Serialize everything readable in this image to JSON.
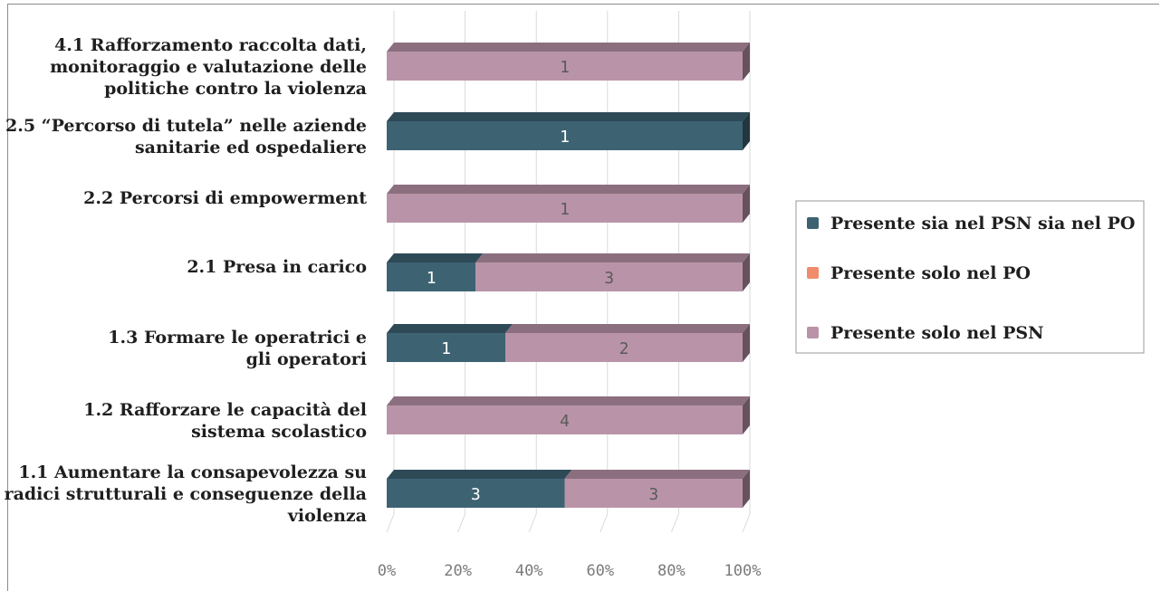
{
  "chart_data": {
    "type": "bar",
    "orientation": "horizontal",
    "stacking": "percent",
    "categories": [
      [
        "4.1 Rafforzamento raccolta dati,",
        "monitoraggio e valutazione delle",
        "politiche contro la violenza"
      ],
      [
        "2.5 “Percorso di tutela” nelle aziende",
        "sanitarie ed ospedaliere"
      ],
      [
        "2.2 Percorsi di empowerment"
      ],
      [
        "2.1 Presa in carico"
      ],
      [
        "1.3 Formare le operatrici e",
        "gli operatori"
      ],
      [
        "1.2 Rafforzare le capacità del",
        "sistema scolastico"
      ],
      [
        "1.1 Aumentare la consapevolezza su",
        "radici strutturali e conseguenze della",
        "violenza"
      ]
    ],
    "series": [
      {
        "name": "Presente sia nel PSN sia nel PO",
        "color": "#3d6373",
        "label_color": "#ffffff",
        "values": [
          0,
          1,
          0,
          1,
          1,
          0,
          3
        ]
      },
      {
        "name": "Presente solo nel PO",
        "color": "#f08c6c",
        "label_color": "#ffffff",
        "values": [
          0,
          0,
          0,
          0,
          0,
          0,
          0
        ]
      },
      {
        "name": "Presente solo nel PSN",
        "color": "#b994a8",
        "label_color": "#5a5a5a",
        "values": [
          1,
          0,
          1,
          3,
          2,
          4,
          3
        ]
      }
    ],
    "x_ticks": [
      "0%",
      "20%",
      "40%",
      "60%",
      "80%",
      "100%"
    ],
    "xlim": [
      0,
      100
    ],
    "grid": true,
    "legend_position": "right",
    "three_d": true
  }
}
